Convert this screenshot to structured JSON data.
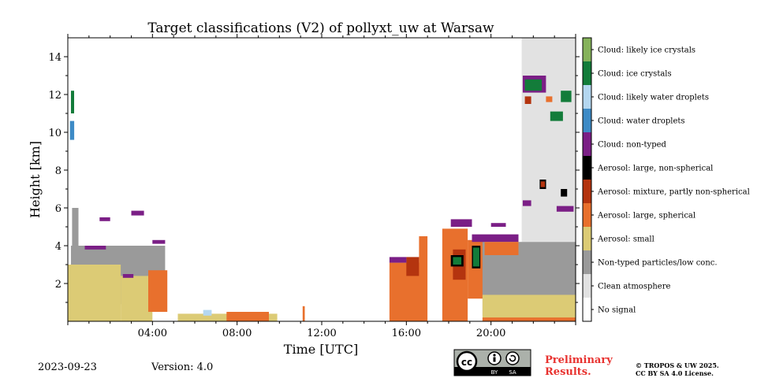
{
  "chart_data": {
    "type": "heatmap",
    "title": "Target classifications (V2) of pollyxt_uw at Warsaw",
    "xlabel": "Time [UTC]",
    "ylabel": "Height [km]",
    "xlim": [
      0,
      24
    ],
    "ylim": [
      0,
      15
    ],
    "x_ticks": [
      {
        "value": 4,
        "label": "04:00"
      },
      {
        "value": 8,
        "label": "08:00"
      },
      {
        "value": 12,
        "label": "12:00"
      },
      {
        "value": 16,
        "label": "16:00"
      },
      {
        "value": 20,
        "label": "20:00"
      }
    ],
    "y_ticks": [
      {
        "value": 2,
        "label": "2"
      },
      {
        "value": 4,
        "label": "4"
      },
      {
        "value": 6,
        "label": "6"
      },
      {
        "value": 8,
        "label": "8"
      },
      {
        "value": 10,
        "label": "10"
      },
      {
        "value": 12,
        "label": "12"
      },
      {
        "value": 14,
        "label": "14"
      }
    ],
    "legend_placement": "right colorbar",
    "classes": [
      {
        "name": "No signal",
        "color": "#ffffff"
      },
      {
        "name": "Clean atmosphere",
        "color": "#e2e2e2"
      },
      {
        "name": "Non-typed particles/low conc.",
        "color": "#9a9a9a"
      },
      {
        "name": "Aerosol: small",
        "color": "#dccb75"
      },
      {
        "name": "Aerosol: large, spherical",
        "color": "#e8702d"
      },
      {
        "name": "Aerosol: mixture, partly non-spherical",
        "color": "#b4340f"
      },
      {
        "name": "Aerosol: large, non-spherical",
        "color": "#000000"
      },
      {
        "name": "Cloud: non-typed",
        "color": "#7b1f86"
      },
      {
        "name": "Cloud: water droplets",
        "color": "#3e8bc6"
      },
      {
        "name": "Cloud: likely water droplets",
        "color": "#b4d7f0"
      },
      {
        "name": "Cloud: ice crystals",
        "color": "#137c3a"
      },
      {
        "name": "Cloud: likely ice crystals",
        "color": "#86b35b"
      }
    ],
    "regions": [
      {
        "class": 1,
        "x0": 21.45,
        "x1": 24,
        "y0": 4.2,
        "y1": 15
      },
      {
        "class": 2,
        "x0": 0.15,
        "x1": 4.6,
        "y0": 0.9,
        "y1": 4.0
      },
      {
        "class": 3,
        "x0": 0,
        "x1": 2.5,
        "y0": 0,
        "y1": 3.0
      },
      {
        "class": 3,
        "x0": 2.5,
        "x1": 4.0,
        "y0": 0,
        "y1": 2.4
      },
      {
        "class": 4,
        "x0": 3.8,
        "x1": 4.7,
        "y0": 0.5,
        "y1": 2.7
      },
      {
        "class": 2,
        "x0": 0.2,
        "x1": 0.5,
        "y0": 4.0,
        "y1": 6.0
      },
      {
        "class": 7,
        "x0": 1.5,
        "x1": 2.0,
        "y0": 5.3,
        "y1": 5.5
      },
      {
        "class": 7,
        "x0": 3.0,
        "x1": 3.6,
        "y0": 5.6,
        "y1": 5.85
      },
      {
        "class": 7,
        "x0": 0.8,
        "x1": 1.8,
        "y0": 3.8,
        "y1": 4.0
      },
      {
        "class": 7,
        "x0": 2.6,
        "x1": 3.1,
        "y0": 2.3,
        "y1": 2.5
      },
      {
        "class": 7,
        "x0": 4.0,
        "x1": 4.6,
        "y0": 4.1,
        "y1": 4.3
      },
      {
        "class": 8,
        "x0": 0.1,
        "x1": 0.3,
        "y0": 9.6,
        "y1": 10.6
      },
      {
        "class": 10,
        "x0": 0.15,
        "x1": 0.3,
        "y0": 11.0,
        "y1": 12.2
      },
      {
        "class": 3,
        "x0": 5.2,
        "x1": 9.9,
        "y0": 0,
        "y1": 0.4
      },
      {
        "class": 4,
        "x0": 7.5,
        "x1": 9.5,
        "y0": 0,
        "y1": 0.5
      },
      {
        "class": 9,
        "x0": 6.4,
        "x1": 6.8,
        "y0": 0.3,
        "y1": 0.6
      },
      {
        "class": 4,
        "x0": 11.1,
        "x1": 11.2,
        "y0": 0,
        "y1": 0.8
      },
      {
        "class": 4,
        "x0": 15.2,
        "x1": 16.6,
        "y0": 0,
        "y1": 3.1
      },
      {
        "class": 5,
        "x0": 16.0,
        "x1": 16.6,
        "y0": 2.4,
        "y1": 3.4
      },
      {
        "class": 7,
        "x0": 15.2,
        "x1": 16.0,
        "y0": 3.1,
        "y1": 3.4
      },
      {
        "class": 4,
        "x0": 16.6,
        "x1": 17.0,
        "y0": 0,
        "y1": 4.5
      },
      {
        "class": 4,
        "x0": 17.7,
        "x1": 18.9,
        "y0": 0,
        "y1": 4.9
      },
      {
        "class": 5,
        "x0": 18.2,
        "x1": 18.8,
        "y0": 2.2,
        "y1": 3.8
      },
      {
        "class": 6,
        "x0": 18.1,
        "x1": 18.7,
        "y0": 2.9,
        "y1": 3.5
      },
      {
        "class": 10,
        "x0": 18.2,
        "x1": 18.6,
        "y0": 3.0,
        "y1": 3.4
      },
      {
        "class": 7,
        "x0": 18.1,
        "x1": 19.1,
        "y0": 5.0,
        "y1": 5.4
      },
      {
        "class": 4,
        "x0": 18.9,
        "x1": 19.7,
        "y0": 1.2,
        "y1": 4.3
      },
      {
        "class": 6,
        "x0": 19.1,
        "x1": 19.5,
        "y0": 2.8,
        "y1": 4.0
      },
      {
        "class": 10,
        "x0": 19.15,
        "x1": 19.45,
        "y0": 2.9,
        "y1": 3.9
      },
      {
        "class": 2,
        "x0": 19.6,
        "x1": 24,
        "y0": 0.3,
        "y1": 4.2
      },
      {
        "class": 3,
        "x0": 19.6,
        "x1": 24,
        "y0": 0,
        "y1": 1.4
      },
      {
        "class": 4,
        "x0": 19.6,
        "x1": 24,
        "y0": 0,
        "y1": 0.2
      },
      {
        "class": 7,
        "x0": 19.1,
        "x1": 21.3,
        "y0": 4.2,
        "y1": 4.6
      },
      {
        "class": 4,
        "x0": 19.7,
        "x1": 21.3,
        "y0": 3.5,
        "y1": 4.2
      },
      {
        "class": 7,
        "x0": 20.0,
        "x1": 20.7,
        "y0": 5.0,
        "y1": 5.2
      },
      {
        "class": 7,
        "x0": 21.5,
        "x1": 22.6,
        "y0": 12.1,
        "y1": 13.0
      },
      {
        "class": 10,
        "x0": 21.6,
        "x1": 22.4,
        "y0": 12.2,
        "y1": 12.8
      },
      {
        "class": 5,
        "x0": 21.6,
        "x1": 21.9,
        "y0": 11.5,
        "y1": 11.9
      },
      {
        "class": 4,
        "x0": 22.6,
        "x1": 22.9,
        "y0": 11.6,
        "y1": 11.9
      },
      {
        "class": 10,
        "x0": 22.8,
        "x1": 23.4,
        "y0": 10.6,
        "y1": 11.1
      },
      {
        "class": 10,
        "x0": 23.3,
        "x1": 23.8,
        "y0": 11.6,
        "y1": 12.2
      },
      {
        "class": 6,
        "x0": 22.3,
        "x1": 22.6,
        "y0": 7.0,
        "y1": 7.5
      },
      {
        "class": 5,
        "x0": 22.35,
        "x1": 22.55,
        "y0": 7.1,
        "y1": 7.4
      },
      {
        "class": 6,
        "x0": 23.3,
        "x1": 23.6,
        "y0": 6.6,
        "y1": 7.0
      },
      {
        "class": 7,
        "x0": 23.1,
        "x1": 23.9,
        "y0": 5.8,
        "y1": 6.1
      },
      {
        "class": 7,
        "x0": 21.5,
        "x1": 21.9,
        "y0": 6.1,
        "y1": 6.4
      }
    ]
  },
  "footer": {
    "date": "2023-09-23",
    "version": "Version: 4.0",
    "license_badge": "cc-by-sa-icon",
    "license_badge_text": [
      "BY",
      "SA"
    ],
    "preliminary": [
      "Preliminary",
      "Results."
    ],
    "copyright": [
      "© TROPOS & UW 2025.",
      "CC BY SA 4.0 License."
    ]
  }
}
